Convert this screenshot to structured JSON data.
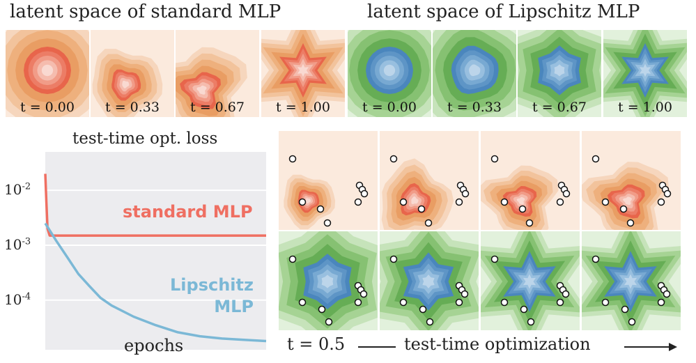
{
  "header": {
    "standard": "latent space of standard MLP",
    "lipschitz": "latent space of Lipschitz MLP"
  },
  "top_panels": [
    {
      "label": "t = 0.00",
      "theme": "orange",
      "shape": "circle"
    },
    {
      "label": "t = 0.33",
      "theme": "orange",
      "shape": "blob"
    },
    {
      "label": "t = 0.67",
      "theme": "orange",
      "shape": "smear"
    },
    {
      "label": "t = 1.00",
      "theme": "orange",
      "shape": "star"
    },
    {
      "label": "t = 0.00",
      "theme": "green",
      "shape": "circle"
    },
    {
      "label": "t = 0.33",
      "theme": "green",
      "shape": "roundish"
    },
    {
      "label": "t = 0.67",
      "theme": "green",
      "shape": "hexish"
    },
    {
      "label": "t = 1.00",
      "theme": "green",
      "shape": "star"
    }
  ],
  "chart_data": {
    "type": "line",
    "title": "test-time opt. loss",
    "xlabel": "epochs",
    "ylabel": "",
    "y_scale": "log",
    "y_ticks": [
      {
        "base": "10",
        "exp": "-2",
        "value": 0.01
      },
      {
        "base": "10",
        "exp": "-3",
        "value": 0.001
      },
      {
        "base": "10",
        "exp": "-4",
        "value": 0.0001
      }
    ],
    "ylim": [
      1.25e-05,
      0.05
    ],
    "xlim": [
      0,
      100
    ],
    "grid": true,
    "series": [
      {
        "name": "standard MLP",
        "color": "#ef6f62",
        "x": [
          0,
          0.5,
          1,
          2,
          3,
          100
        ],
        "y": [
          0.02,
          0.006,
          0.002,
          0.0015,
          0.0015,
          0.0015
        ]
      },
      {
        "name": "Lipschitz MLP",
        "color": "#7bb8d6",
        "x": [
          0,
          5,
          10,
          15,
          20,
          25,
          30,
          40,
          50,
          60,
          70,
          80,
          90,
          100
        ],
        "y": [
          0.0025,
          0.0012,
          0.0006,
          0.0003,
          0.00018,
          0.00011,
          8e-05,
          5e-05,
          3.5e-05,
          2.6e-05,
          2.2e-05,
          2e-05,
          1.9e-05,
          1.8e-05
        ]
      }
    ]
  },
  "grid_panels": {
    "orange_shapes": [
      "blob",
      "blob2",
      "smear",
      "smear"
    ],
    "green_shapes": [
      "hexish",
      "hexish2",
      "star",
      "star"
    ]
  },
  "bottom": {
    "t_label": "t = 0.5",
    "opt_label": "test-time optimization"
  },
  "colors": {
    "orange_bg_light": "#f9e6d6",
    "orange_bg_mid": "#f0b787",
    "orange_core": "#e55f46",
    "green_bg_light": "#dcefd5",
    "green_bg_mid": "#7bbf6a",
    "blue_core": "#4a86bd",
    "chart_bg": "#ececef"
  }
}
